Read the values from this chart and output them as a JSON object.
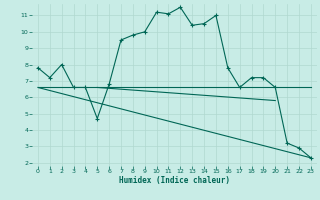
{
  "xlabel": "Humidex (Indice chaleur)",
  "background_color": "#c8ece6",
  "grid_color": "#b0d8d0",
  "line_color": "#006655",
  "xlim": [
    -0.5,
    23.5
  ],
  "ylim": [
    1.8,
    11.7
  ],
  "yticks": [
    2,
    3,
    4,
    5,
    6,
    7,
    8,
    9,
    10,
    11
  ],
  "xticks": [
    0,
    1,
    2,
    3,
    4,
    5,
    6,
    7,
    8,
    9,
    10,
    11,
    12,
    13,
    14,
    15,
    16,
    17,
    18,
    19,
    20,
    21,
    22,
    23
  ],
  "line1_x": [
    0,
    1,
    2,
    3,
    4,
    5,
    6,
    7,
    8,
    9,
    10,
    11,
    12,
    13,
    14,
    15,
    16,
    17,
    18,
    19,
    20,
    21,
    22,
    23
  ],
  "line1_y": [
    7.8,
    7.2,
    8.0,
    6.6,
    6.6,
    4.7,
    6.8,
    9.5,
    9.8,
    10.0,
    11.2,
    11.1,
    11.5,
    10.4,
    10.5,
    11.0,
    7.8,
    6.6,
    7.2,
    7.2,
    6.6,
    3.2,
    2.9,
    2.3
  ],
  "line2_x": [
    0,
    23
  ],
  "line2_y": [
    6.6,
    6.6
  ],
  "line3_x": [
    0,
    23
  ],
  "line3_y": [
    6.6,
    2.3
  ],
  "line4_x": [
    5,
    20
  ],
  "line4_y": [
    6.6,
    5.8
  ]
}
